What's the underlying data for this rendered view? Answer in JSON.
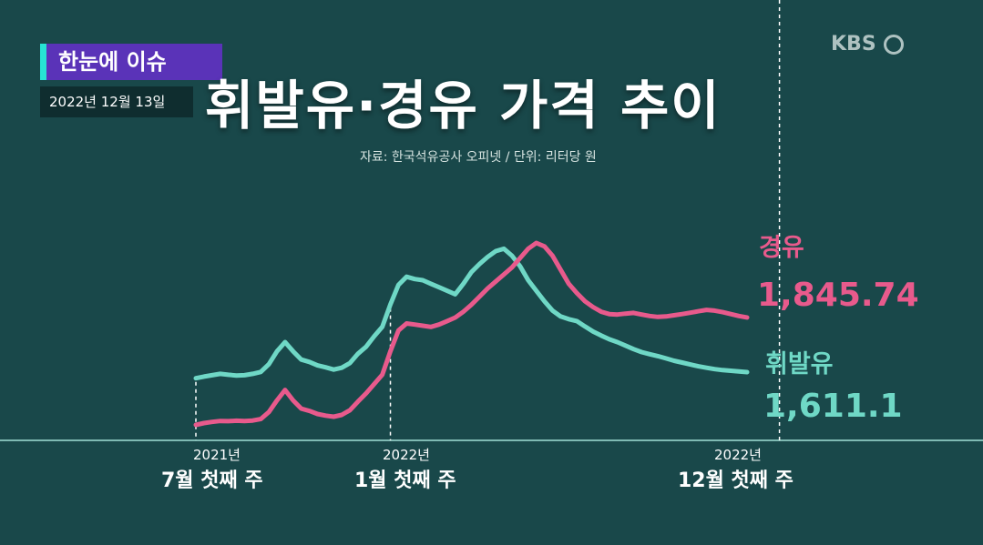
{
  "badge": {
    "label": "한눈에 이슈"
  },
  "date": {
    "label": "2022년 12월 13일"
  },
  "brand": {
    "logo": "KBS"
  },
  "colors": {
    "diesel": "#e85a8c",
    "gasoline": "#6fd8c6",
    "background": "#19484a",
    "badge": "#5a33b8"
  },
  "chart_data": {
    "type": "line",
    "title": "휘발유·경유 가격 추이",
    "subtitle": "자료: 한국석유공사 오피넷 / 단위: 리터당 원",
    "x_ticks": [
      {
        "year": "2021년",
        "week": "7월 첫째 주",
        "index": 0
      },
      {
        "year": "2022년",
        "week": "1월 첫째 주",
        "index": 24
      },
      {
        "year": "2022년",
        "week": "12월 첫째 주",
        "index": 72
      }
    ],
    "series": [
      {
        "name": "휘발유",
        "end_label": "1,611.1",
        "values": [
          1585,
          1592,
          1598,
          1604,
          1600,
          1597,
          1598,
          1604,
          1612,
          1645,
          1700,
          1740,
          1700,
          1665,
          1655,
          1640,
          1632,
          1622,
          1630,
          1650,
          1690,
          1720,
          1765,
          1805,
          1901,
          1985,
          2020,
          2010,
          2005,
          1990,
          1975,
          1960,
          1945,
          1990,
          2040,
          2075,
          2105,
          2130,
          2140,
          2110,
          2065,
          2005,
          1960,
          1915,
          1875,
          1850,
          1838,
          1830,
          1807,
          1785,
          1768,
          1752,
          1740,
          1725,
          1710,
          1697,
          1688,
          1680,
          1670,
          1660,
          1652,
          1644,
          1636,
          1630,
          1624,
          1620,
          1617,
          1614,
          1611.1
        ]
      },
      {
        "name": "경유",
        "end_label": "1,845.74",
        "values": [
          1385,
          1393,
          1398,
          1402,
          1401,
          1403,
          1402,
          1404,
          1410,
          1440,
          1490,
          1535,
          1490,
          1455,
          1445,
          1432,
          1425,
          1420,
          1428,
          1448,
          1485,
          1520,
          1560,
          1600,
          1700,
          1790,
          1820,
          1815,
          1810,
          1805,
          1815,
          1830,
          1845,
          1870,
          1900,
          1935,
          1970,
          2000,
          2030,
          2060,
          2100,
          2140,
          2165,
          2150,
          2110,
          2050,
          1990,
          1950,
          1915,
          1890,
          1870,
          1860,
          1858,
          1862,
          1865,
          1858,
          1852,
          1848,
          1850,
          1855,
          1860,
          1866,
          1872,
          1878,
          1875,
          1868,
          1860,
          1852,
          1845.74
        ]
      }
    ],
    "ylim": [
      1350,
      2200
    ],
    "grid": false
  }
}
